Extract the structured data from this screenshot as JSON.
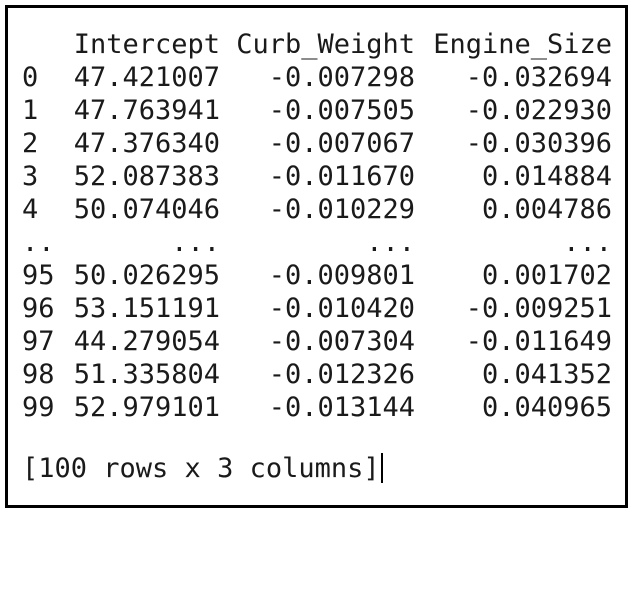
{
  "table": {
    "headers": [
      "Intercept",
      "Curb_Weight",
      "Engine_Size"
    ],
    "rows": [
      {
        "index": "0",
        "intercept": "47.421007",
        "curb_weight": "-0.007298",
        "engine_size": "-0.032694"
      },
      {
        "index": "1",
        "intercept": "47.763941",
        "curb_weight": "-0.007505",
        "engine_size": "-0.022930"
      },
      {
        "index": "2",
        "intercept": "47.376340",
        "curb_weight": "-0.007067",
        "engine_size": "-0.030396"
      },
      {
        "index": "3",
        "intercept": "52.087383",
        "curb_weight": "-0.011670",
        "engine_size": "0.014884"
      },
      {
        "index": "4",
        "intercept": "50.074046",
        "curb_weight": "-0.010229",
        "engine_size": "0.004786"
      },
      {
        "index": "..",
        "intercept": "...",
        "curb_weight": "...",
        "engine_size": "..."
      },
      {
        "index": "95",
        "intercept": "50.026295",
        "curb_weight": "-0.009801",
        "engine_size": "0.001702"
      },
      {
        "index": "96",
        "intercept": "53.151191",
        "curb_weight": "-0.010420",
        "engine_size": "-0.009251"
      },
      {
        "index": "97",
        "intercept": "44.279054",
        "curb_weight": "-0.007304",
        "engine_size": "-0.011649"
      },
      {
        "index": "98",
        "intercept": "51.335804",
        "curb_weight": "-0.012326",
        "engine_size": "0.041352"
      },
      {
        "index": "99",
        "intercept": "52.979101",
        "curb_weight": "-0.013144",
        "engine_size": "0.040965"
      }
    ]
  },
  "summary": "[100 rows x 3 columns]"
}
